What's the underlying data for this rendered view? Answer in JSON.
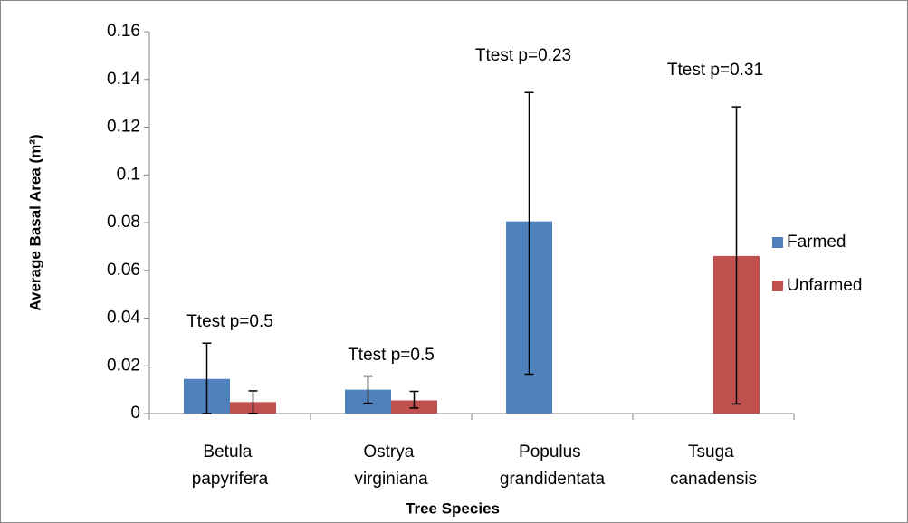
{
  "chart_data": {
    "type": "bar",
    "x_label": "Tree Species",
    "y_label": "Average Basal Area (m²)",
    "categories": [
      "Betula papyrifera",
      "Ostrya virginiana",
      "Populus grandidentata",
      "Tsuga canadensis"
    ],
    "series": [
      {
        "name": "Farmed",
        "color": "#4f81bd",
        "values": [
          0.0145,
          0.01,
          0.0805,
          null
        ],
        "error_plus": [
          0.015,
          0.0057,
          0.054,
          null
        ],
        "error_minus": [
          0.015,
          0.0057,
          0.064,
          null
        ]
      },
      {
        "name": "Unfarmed",
        "color": "#c0504d",
        "values": [
          0.0048,
          0.0055,
          null,
          0.066
        ],
        "error_plus": [
          0.0047,
          0.0038,
          null,
          0.0625
        ],
        "error_minus": [
          0.0047,
          0.0032,
          null,
          0.062
        ]
      }
    ],
    "annotations": [
      "Ttest p=0.5",
      "Ttest p=0.5",
      "Ttest p=0.23",
      "Ttest p=0.31"
    ],
    "ylim": [
      0,
      0.16
    ],
    "yticks": [
      0,
      0.02,
      0.04,
      0.06,
      0.08,
      0.1,
      0.12,
      0.14,
      0.16
    ],
    "grid": false,
    "legend": "right"
  }
}
